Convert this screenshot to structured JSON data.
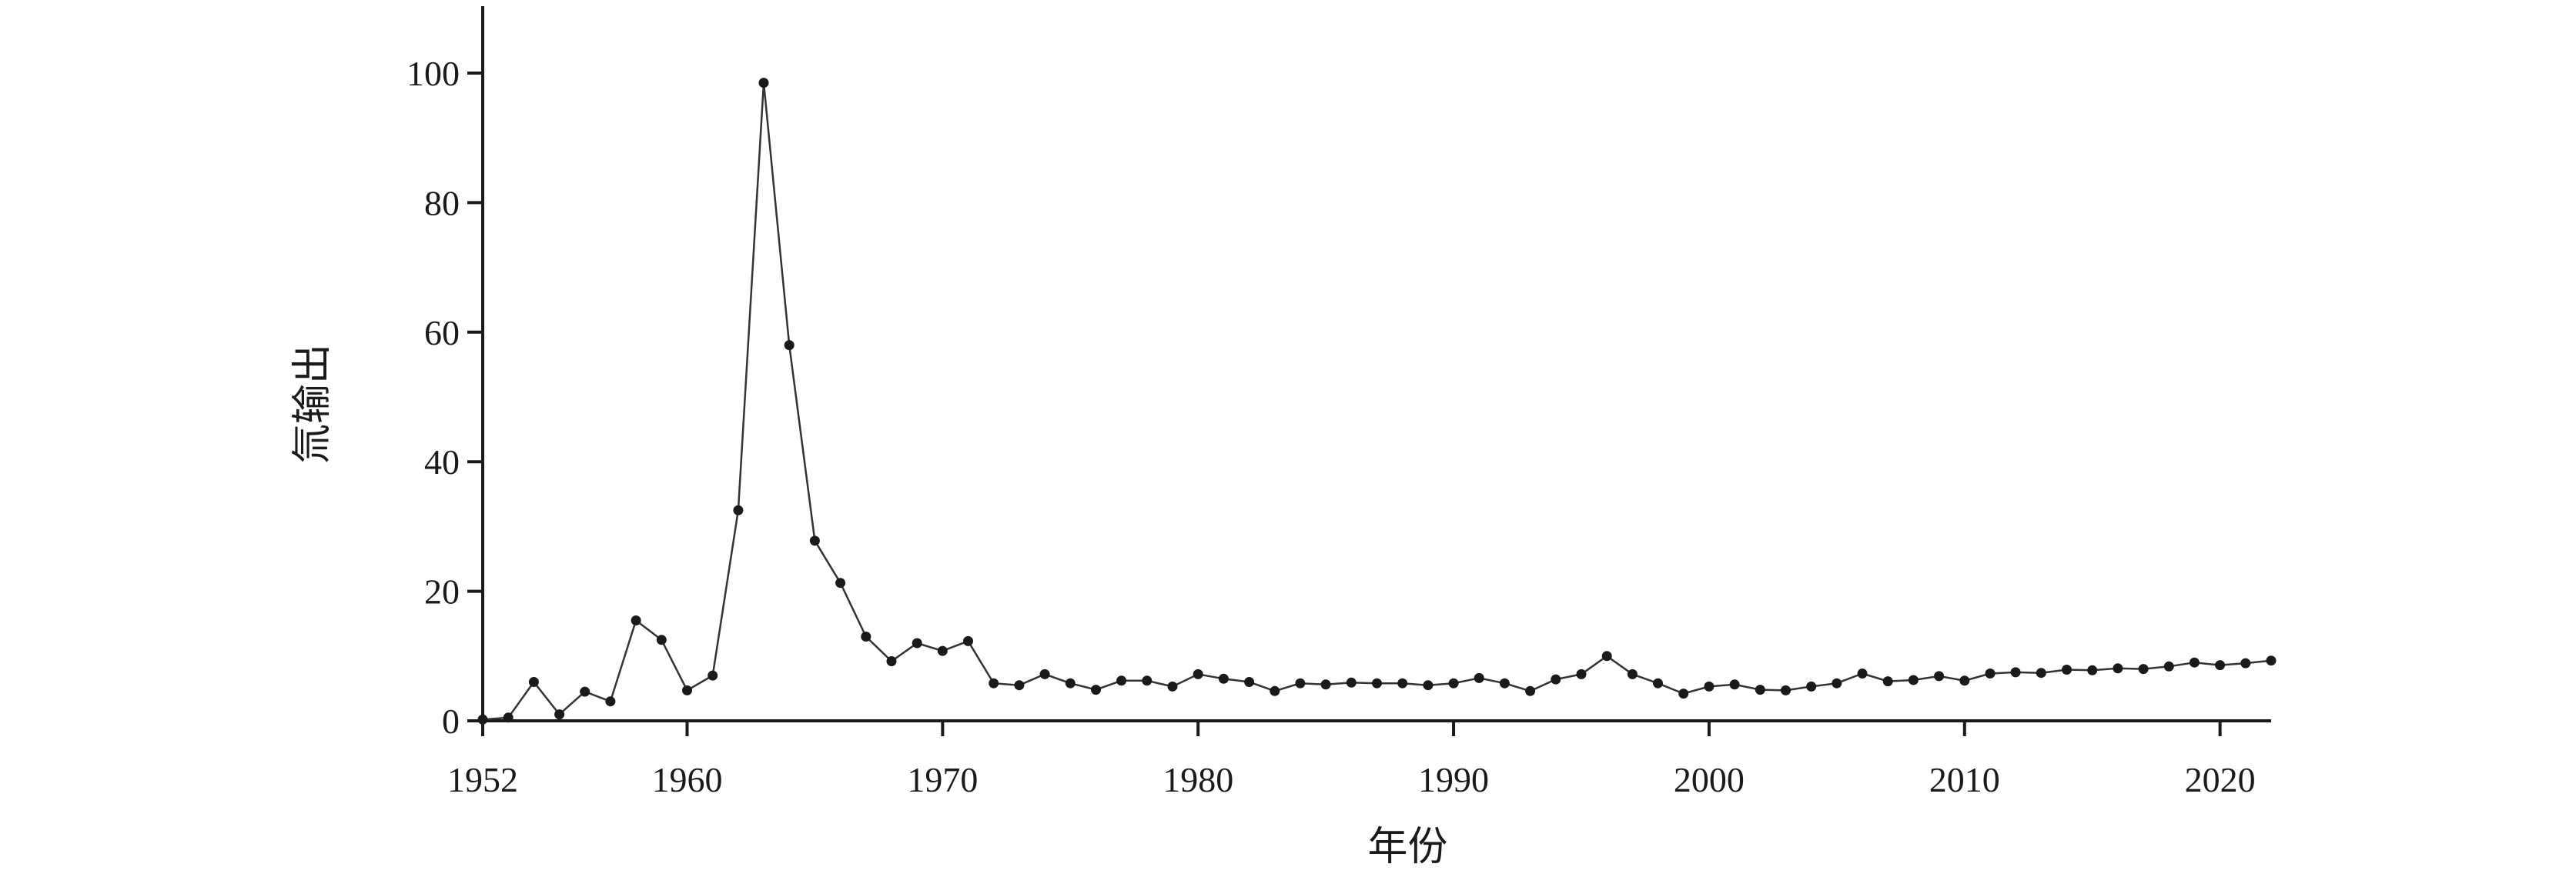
{
  "chart_data": {
    "type": "line",
    "title": "",
    "xlabel": "年份",
    "ylabel": "氚输出",
    "xlim": [
      1952,
      2022
    ],
    "ylim": [
      0,
      110
    ],
    "xticks": [
      "1952",
      "1960",
      "1970",
      "1980",
      "1990",
      "2000",
      "2010",
      "2020"
    ],
    "yticks": [
      "0",
      "20",
      "40",
      "60",
      "80",
      "100"
    ],
    "grid": false,
    "legend": "none",
    "series": [
      {
        "color": "#333333",
        "x": [
          1952,
          1953,
          1954,
          1955,
          1956,
          1957,
          1958,
          1959,
          1960,
          1961,
          1962,
          1963,
          1964,
          1965,
          1966,
          1967,
          1968,
          1969,
          1970,
          1971,
          1972,
          1973,
          1974,
          1975,
          1976,
          1977,
          1978,
          1979,
          1980,
          1981,
          1982,
          1983,
          1984,
          1985,
          1986,
          1987,
          1988,
          1989,
          1990,
          1991,
          1992,
          1993,
          1994,
          1995,
          1996,
          1997,
          1998,
          1999,
          2000,
          2001,
          2002,
          2003,
          2004,
          2005,
          2006,
          2007,
          2008,
          2009,
          2010,
          2011,
          2012,
          2013,
          2014,
          2015,
          2016,
          2017,
          2018,
          2019,
          2020,
          2021,
          2022
        ],
        "y": [
          0.2,
          0.5,
          6,
          1,
          4.5,
          3,
          15.5,
          12.5,
          4.7,
          7,
          32.5,
          98.5,
          58,
          27.8,
          21.3,
          13,
          9.2,
          12,
          10.8,
          12.3,
          5.8,
          5.5,
          7.2,
          5.8,
          4.8,
          6.2,
          6.2,
          5.3,
          7.2,
          6.5,
          6,
          4.6,
          5.8,
          5.6,
          5.9,
          5.8,
          5.8,
          5.5,
          5.8,
          6.6,
          5.8,
          4.6,
          6.4,
          7.2,
          10,
          7.2,
          5.8,
          4.2,
          5.3,
          5.6,
          4.8,
          4.7,
          5.3,
          5.8,
          7.3,
          6.1,
          6.3,
          6.9,
          6.2,
          7.3,
          7.5,
          7.4,
          7.9,
          7.8,
          8.1,
          8,
          8.4,
          9,
          8.6,
          8.9,
          9.3
        ]
      }
    ]
  }
}
